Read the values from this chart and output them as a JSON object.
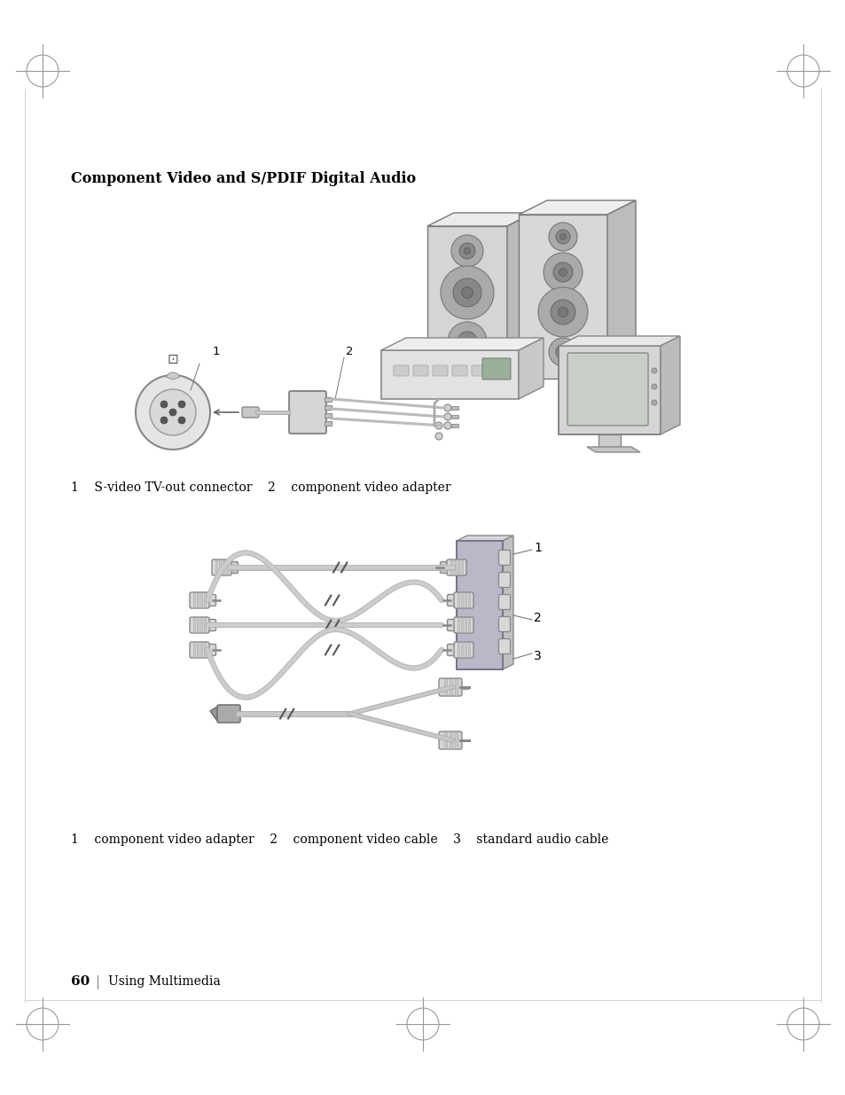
{
  "title": "Component Video and S/PDIF Digital Audio",
  "title_fontsize": 11.5,
  "background_color": "#ffffff",
  "page_number": "60",
  "page_text": "Using Multimedia",
  "caption_top": "1    S-video TV-out connector    2    component video adapter",
  "caption_bottom": "1    component video adapter    2    component video cable    3    standard audio cable",
  "gray1": "#e8e8e8",
  "gray2": "#cccccc",
  "gray3": "#aaaaaa",
  "gray4": "#888888",
  "gray5": "#666666",
  "dark": "#333333",
  "white": "#ffffff"
}
